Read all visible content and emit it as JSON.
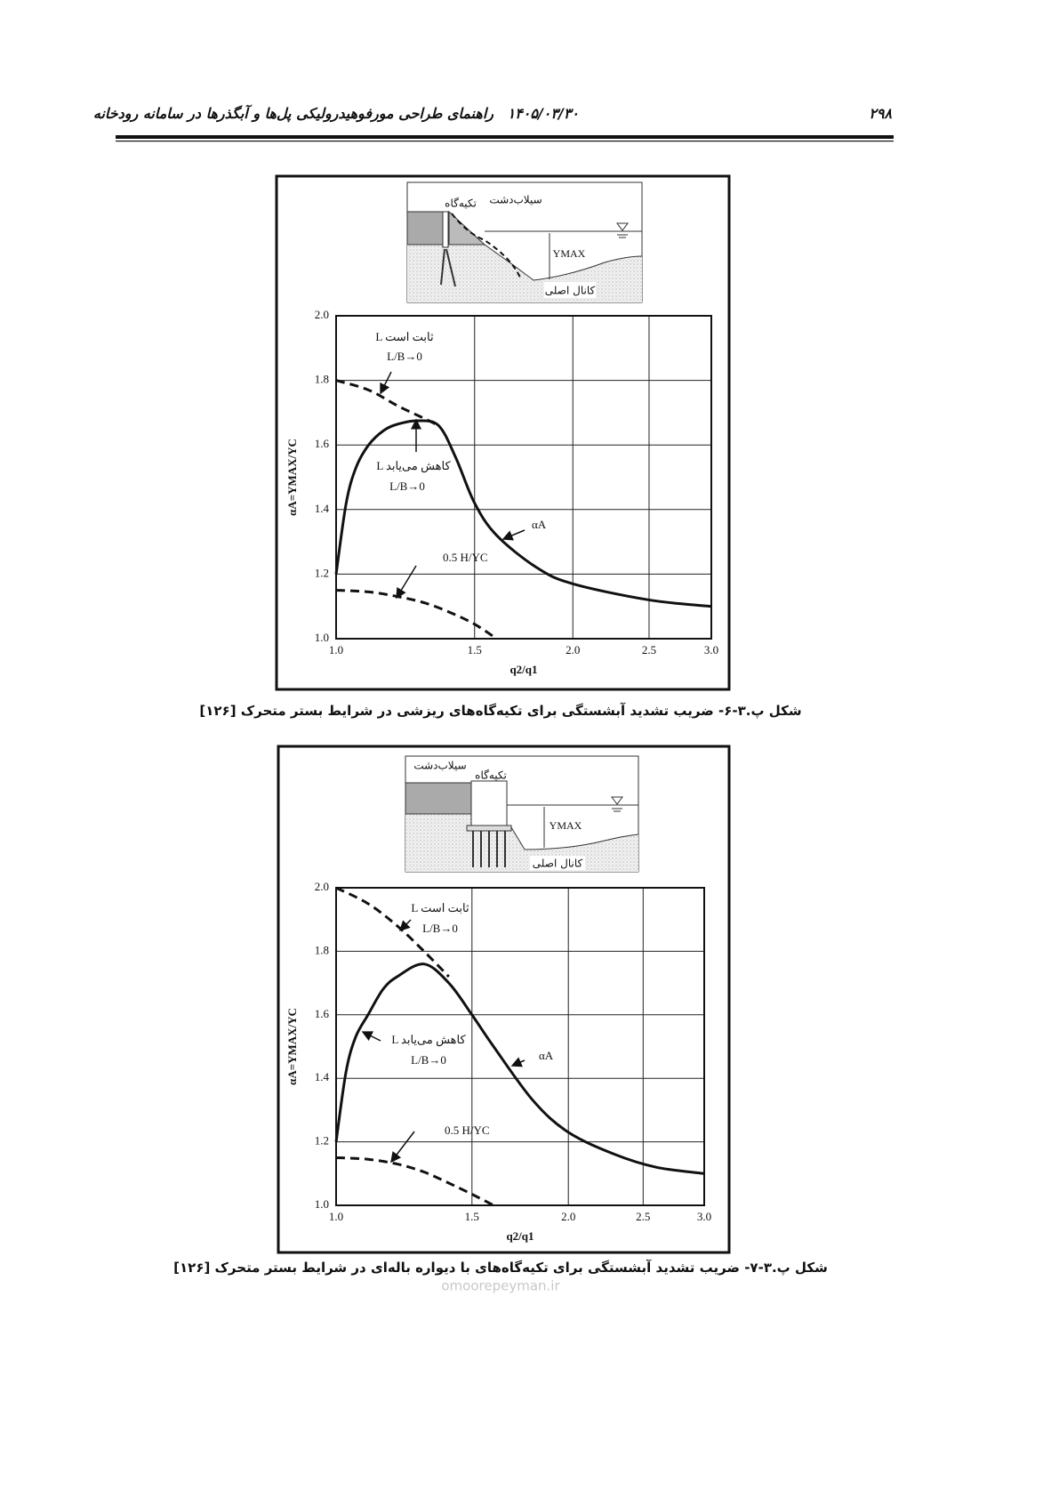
{
  "header": {
    "page_number": "۲۹۸",
    "date": "۱۴۰۵/۰۳/۳۰",
    "title": "راهنمای طراحی مورفوهیدرولیکی پل‌ها و آبگذرها در سامانه رودخانه"
  },
  "figures": [
    {
      "diagram": {
        "abutment": "تکیه‌گاه",
        "floodplain": "سیلاب‌دشت",
        "ymax": "YMAX",
        "main_channel": "کانال اصلی"
      },
      "caption": "شکل پ.۳-۶- ضریب تشدید آبشستگی برای تکیه‌گاه‌های ریزشی در شرایط بستر متحرک [۱۲۶]"
    },
    {
      "diagram": {
        "abutment": "تکیه‌گاه",
        "floodplain": "سیلاب‌دشت",
        "ymax": "YMAX",
        "main_channel": "کانال اصلی"
      },
      "caption": "شکل پ.۳-۷- ضریب تشدید آبشستگی برای تکیه‌گاه‌های با دیواره باله‌ای در شرایط بستر متحرک [۱۲۶]"
    }
  ],
  "chart_data": [
    {
      "type": "line",
      "xlabel": "q2/q1",
      "ylabel": "αA=YMAX/YC",
      "xlim": [
        1,
        3
      ],
      "xlog": true,
      "ylim": [
        1,
        2
      ],
      "grid": true,
      "xticks": [
        {
          "value": 1,
          "label": "1.0"
        },
        1.5,
        {
          "value": 2,
          "label": "2.0"
        },
        2.5,
        {
          "value": 3,
          "label": "3.0"
        }
      ],
      "yticks": [
        {
          "value": 1,
          "label": "1.0"
        },
        1.2,
        1.4,
        1.6,
        1.8,
        {
          "value": 2,
          "label": "2.0"
        }
      ],
      "series": [
        {
          "name": "αA",
          "color": "#111111",
          "style": "solid",
          "x": [
            1.0,
            1.03,
            1.06,
            1.1,
            1.15,
            1.2,
            1.27,
            1.35,
            1.42,
            1.5,
            1.6,
            1.8,
            2.0,
            2.5,
            3.0
          ],
          "values": [
            1.2,
            1.42,
            1.53,
            1.6,
            1.645,
            1.665,
            1.675,
            1.66,
            1.56,
            1.42,
            1.32,
            1.22,
            1.17,
            1.12,
            1.1
          ]
        },
        {
          "color": "#111111",
          "style": "dashed",
          "x": [
            1.0,
            1.1,
            1.2,
            1.3,
            1.35
          ],
          "values": [
            1.8,
            1.77,
            1.72,
            1.68,
            1.66
          ]
        },
        {
          "name": "0.5 H/YC",
          "color": "#111111",
          "style": "dashed",
          "x": [
            1.0,
            1.1,
            1.2,
            1.3,
            1.4,
            1.5,
            1.6
          ],
          "values": [
            1.15,
            1.145,
            1.13,
            1.11,
            1.08,
            1.045,
            1.0
          ]
        }
      ],
      "annotations": [
        "L ثابت است",
        "L/B→0",
        "L کاهش می‌یابد",
        "L/B→0"
      ]
    },
    {
      "type": "line",
      "xlabel": "q2/q1",
      "ylabel": "αA=YMAX/YC",
      "xlim": [
        1,
        3
      ],
      "xlog": true,
      "ylim": [
        1,
        2
      ],
      "grid": true,
      "xticks": [
        {
          "value": 1,
          "label": "1.0"
        },
        1.5,
        {
          "value": 2,
          "label": "2.0"
        },
        2.5,
        {
          "value": 3,
          "label": "3.0"
        }
      ],
      "yticks": [
        {
          "value": 1,
          "label": "1.0"
        },
        1.2,
        1.4,
        1.6,
        1.8,
        {
          "value": 2,
          "label": "2.0"
        }
      ],
      "series": [
        {
          "name": "αA",
          "color": "#111111",
          "style": "solid",
          "x": [
            1.0,
            1.03,
            1.06,
            1.1,
            1.15,
            1.2,
            1.3,
            1.4,
            1.5,
            1.6,
            1.8,
            2.0,
            2.3,
            2.6,
            3.0
          ],
          "values": [
            1.2,
            1.42,
            1.53,
            1.6,
            1.68,
            1.72,
            1.76,
            1.7,
            1.6,
            1.5,
            1.33,
            1.23,
            1.16,
            1.12,
            1.1
          ]
        },
        {
          "color": "#111111",
          "style": "dashed",
          "x": [
            1.0,
            1.1,
            1.2,
            1.3,
            1.4
          ],
          "values": [
            2.0,
            1.95,
            1.88,
            1.8,
            1.72
          ]
        },
        {
          "name": "0.5 H/YC",
          "color": "#111111",
          "style": "dashed",
          "x": [
            1.0,
            1.1,
            1.2,
            1.3,
            1.4,
            1.5,
            1.6
          ],
          "values": [
            1.15,
            1.145,
            1.13,
            1.105,
            1.07,
            1.035,
            1.0
          ]
        }
      ],
      "annotations": [
        "L ثابت است",
        "L/B→0",
        "L کاهش می‌یابد",
        "L/B→0"
      ]
    }
  ],
  "watermark": "omoorepeyman.ir"
}
